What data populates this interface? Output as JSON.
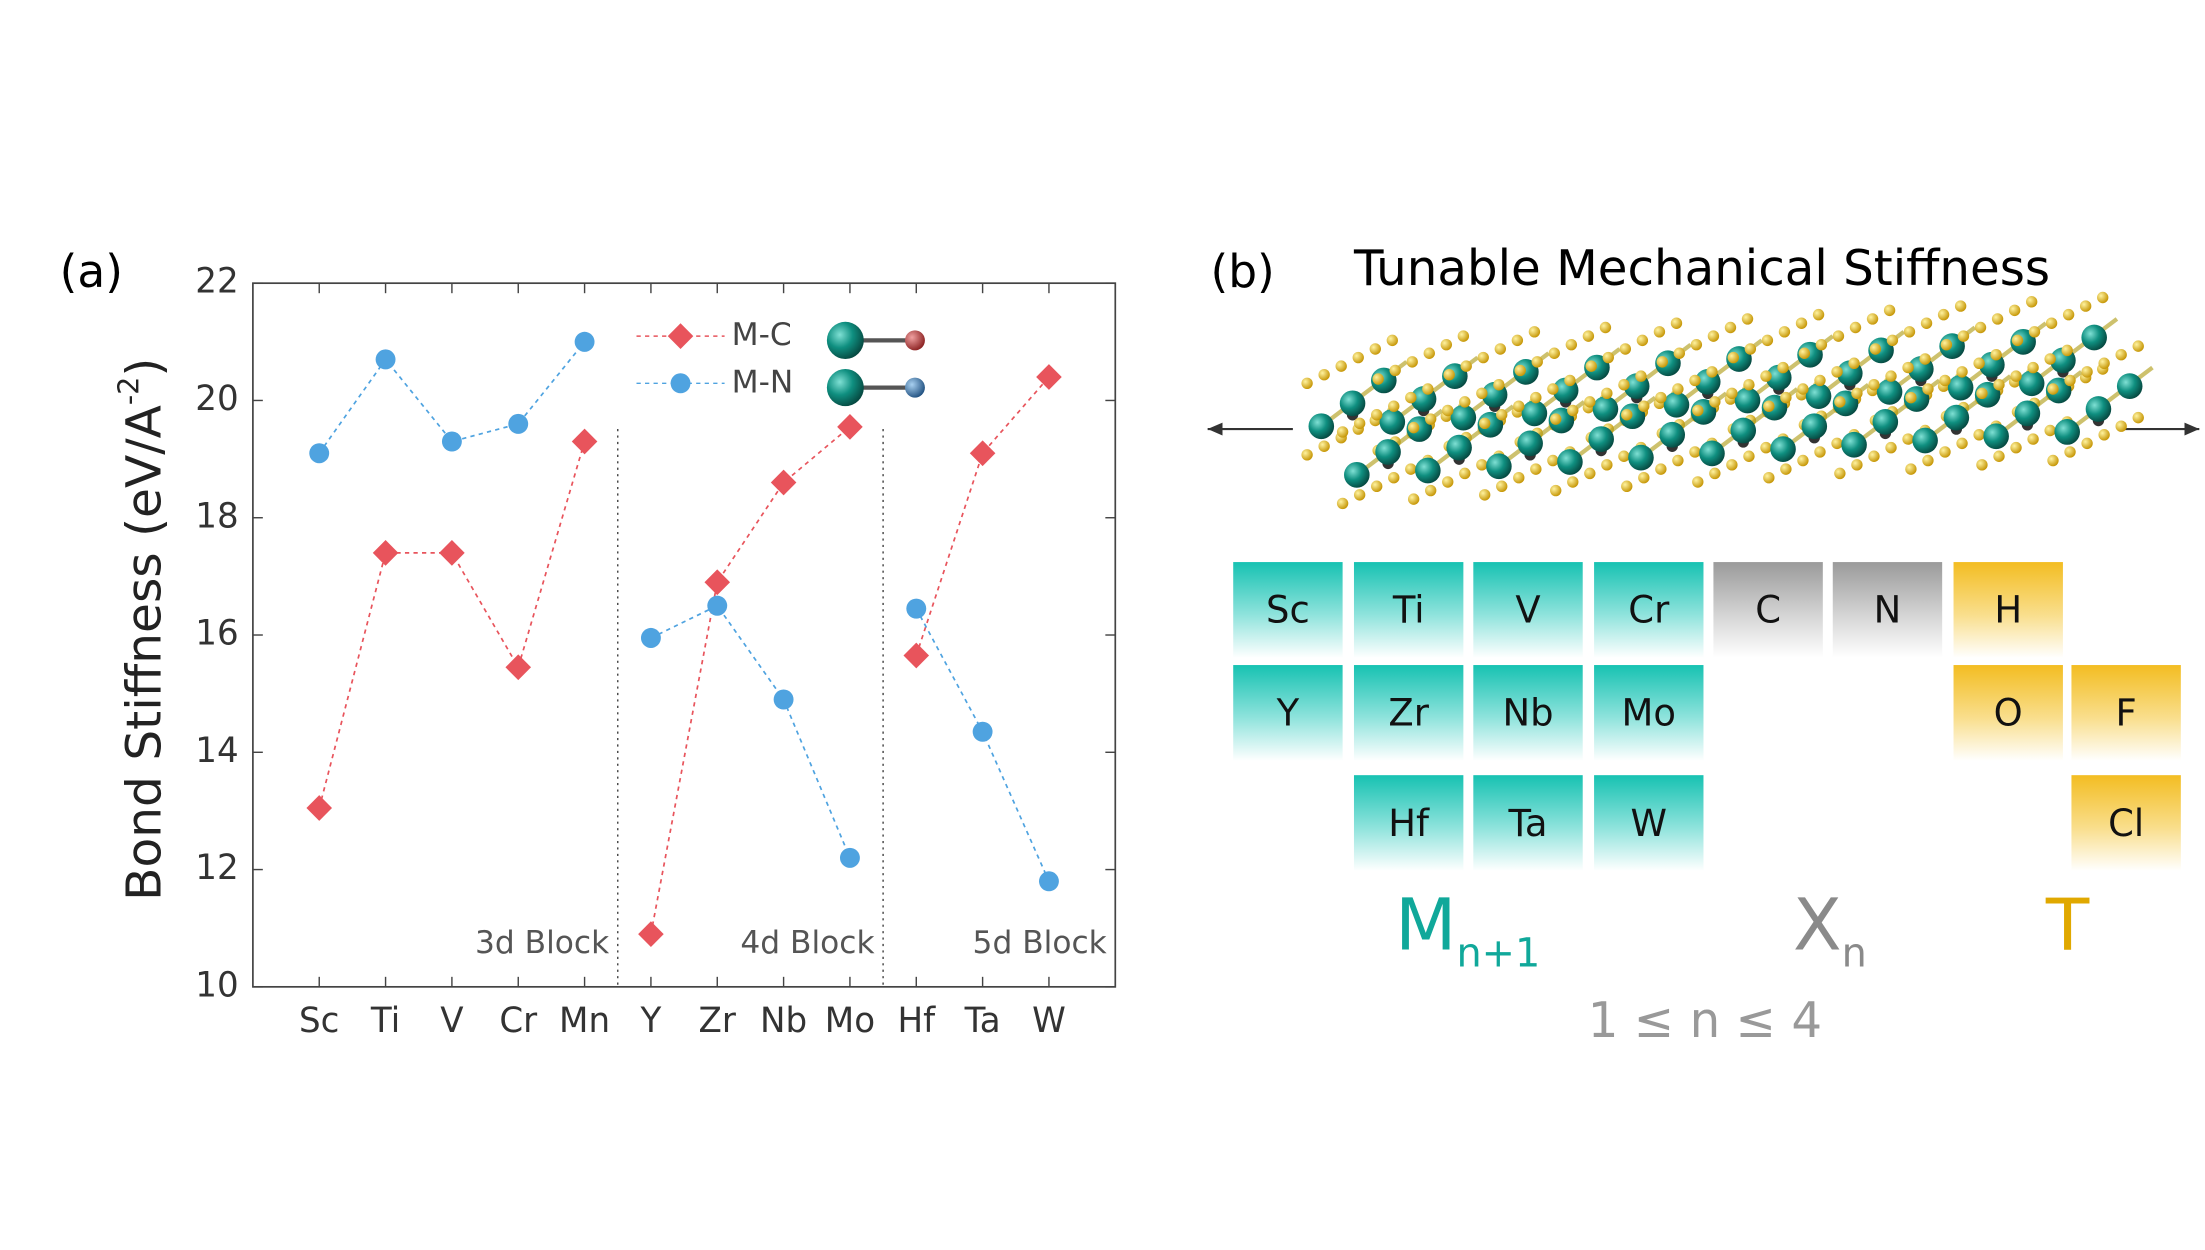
{
  "chart_data": {
    "type": "line",
    "panel_label": "(a)",
    "ylabel": {
      "text": "Bond Stiffness (eV/A",
      "sup": "-2",
      "end": ")"
    },
    "blocks": [
      {
        "label": "3d Block",
        "categories": [
          "Sc",
          "Ti",
          "V",
          "Cr",
          "Mn"
        ]
      },
      {
        "label": "4d Block",
        "categories": [
          "Y",
          "Zr",
          "Nb",
          "Mo"
        ]
      },
      {
        "label": "5d Block",
        "categories": [
          "Hf",
          "Ta",
          "W"
        ]
      }
    ],
    "series": [
      {
        "name": "M-C",
        "color": "#e8545c",
        "marker": "diamond",
        "values": [
          13.05,
          17.4,
          17.4,
          15.45,
          19.3,
          10.9,
          16.9,
          18.6,
          19.55,
          15.65,
          19.1,
          20.4
        ]
      },
      {
        "name": "M-N",
        "color": "#4fa3e0",
        "marker": "circle",
        "values": [
          19.1,
          20.7,
          19.3,
          19.6,
          21.0,
          15.95,
          16.5,
          14.9,
          12.2,
          16.45,
          14.35,
          11.8
        ]
      }
    ],
    "ylim": [
      10,
      22
    ],
    "yticks": [
      10,
      12,
      14,
      16,
      18,
      20,
      22
    ],
    "grid": false
  },
  "panel_b": {
    "panel_label": "(b)",
    "title": "Tunable Mechanical Stiffness",
    "M_elements": [
      "Sc",
      "Ti",
      "V",
      "Cr",
      "Y",
      "Zr",
      "Nb",
      "Mo",
      "Hf",
      "Ta",
      "W"
    ],
    "X_elements": [
      "C",
      "N"
    ],
    "T_elements": [
      "H",
      "O",
      "F",
      "Cl"
    ],
    "M_label": {
      "main": "M",
      "sub": "n+1"
    },
    "X_label": {
      "main": "X",
      "sub": "n"
    },
    "T_label": "T",
    "range_label": "1 ≤ n ≤ 4"
  }
}
